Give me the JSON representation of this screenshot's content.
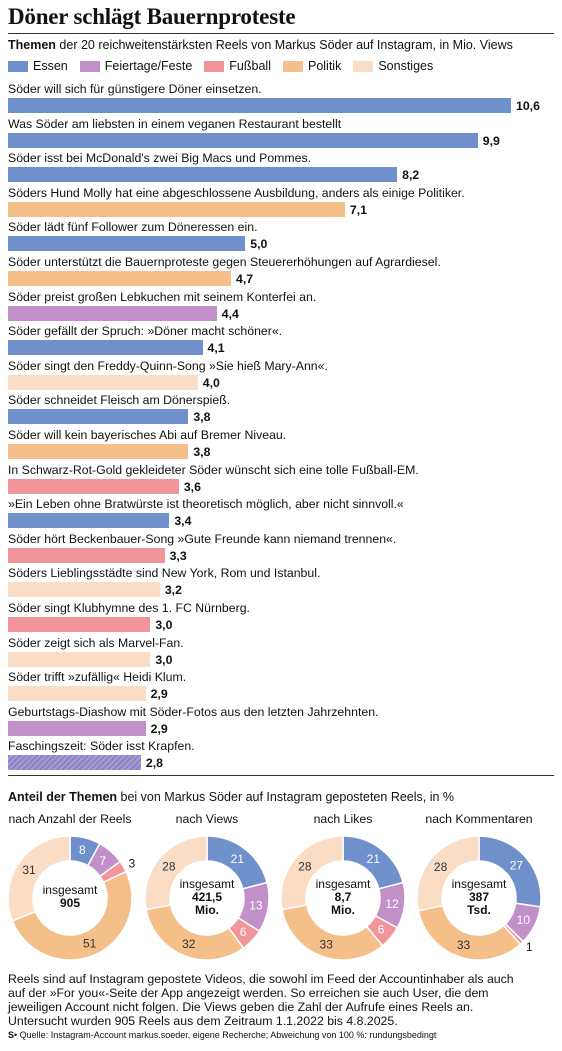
{
  "title": "Döner schlägt Bauernproteste",
  "subtitle_bold": "Themen",
  "subtitle_rest": " der 20 reichweitenstärksten Reels von Markus Söder auf Instagram, in Mio. Views",
  "colors": {
    "Essen": "#7090cc",
    "Feiertage/Feste": "#c290c8",
    "Fußball": "#f2959a",
    "Politik": "#f5bf8a",
    "Sonstiges": "#fbdcc4"
  },
  "legend": [
    "Essen",
    "Feiertage/Feste",
    "Fußball",
    "Politik",
    "Sonstiges"
  ],
  "chart_data": [
    {
      "type": "bar",
      "orientation": "horizontal",
      "unit": "Mio. Views",
      "categories": [
        "Söder will sich für günstigere Döner einsetzen.",
        "Was Söder am liebsten in einem veganen Restaurant bestellt",
        "Söder isst bei McDonald's zwei Big Macs und Pommes.",
        "Söders Hund Molly hat eine abgeschlossene Ausbildung, anders als einige Politiker.",
        "Söder lädt fünf Follower zum Döneressen ein.",
        "Söder unterstützt die Bauernproteste gegen Steuererhöhungen auf Agrardiesel.",
        "Söder preist großen Lebkuchen mit seinem Konterfei an.",
        "Söder gefällt der Spruch: »Döner macht schöner«.",
        "Söder singt den Freddy-Quinn-Song »Sie hieß Mary-Ann«.",
        "Söder schneidet Fleisch am Dönerspieß.",
        "Söder will kein bayerisches Abi auf Bremer Niveau.",
        "In Schwarz-Rot-Gold gekleideter Söder wünscht sich eine tolle Fußball-EM.",
        "»Ein Leben ohne Bratwürste ist theoretisch möglich, aber nicht sinnvoll.«",
        "Söder hört Beckenbauer-Song »Gute Freunde kann niemand trennen«.",
        "Söders Lieblingsstädte sind New York, Rom und Istanbul.",
        "Söder singt Klubhymne des 1. FC Nürnberg.",
        "Söder zeigt sich als Marvel-Fan.",
        "Söder trifft »zufällig« Heidi Klum.",
        "Geburtstags-Diashow mit Söder-Fotos aus den letzten Jahrzehnten.",
        "Faschingszeit: Söder isst Krapfen."
      ],
      "values": [
        10.6,
        9.9,
        8.2,
        7.1,
        5.0,
        4.7,
        4.4,
        4.1,
        4.0,
        3.8,
        3.8,
        3.6,
        3.4,
        3.3,
        3.2,
        3.0,
        3.0,
        2.9,
        2.9,
        2.8
      ],
      "value_labels": [
        "10,6",
        "9,9",
        "8,2",
        "7,1",
        "5,0",
        "4,7",
        "4,4",
        "4,1",
        "4,0",
        "3,8",
        "3,8",
        "3,6",
        "3,4",
        "3,3",
        "3,2",
        "3,0",
        "3,0",
        "2,9",
        "2,9",
        "2,8"
      ],
      "topics": [
        "Essen",
        "Essen",
        "Essen",
        "Politik",
        "Essen",
        "Politik",
        "Feiertage/Feste",
        "Essen",
        "Sonstiges",
        "Essen",
        "Politik",
        "Fußball",
        "Essen",
        "Fußball",
        "Sonstiges",
        "Fußball",
        "Sonstiges",
        "Sonstiges",
        "Feiertage/Feste",
        "Essen+Feiertage/Feste"
      ]
    },
    {
      "type": "pie",
      "donut": true,
      "title_bold": "Anteil der Themen",
      "title_rest": " bei von Markus Söder auf Instagram geposteten Reels, in %",
      "series_order": [
        "Essen",
        "Feiertage/Feste",
        "Fußball",
        "Politik",
        "Sonstiges"
      ],
      "charts": [
        {
          "caption": "nach Anzahl der Reels",
          "center": [
            "insgesamt",
            "905"
          ],
          "values": [
            8,
            7,
            3,
            51,
            31
          ]
        },
        {
          "caption": "nach Views",
          "center": [
            "insgesamt",
            "421,5",
            "Mio."
          ],
          "values": [
            21,
            13,
            6,
            32,
            28
          ]
        },
        {
          "caption": "nach Likes",
          "center": [
            "insgesamt",
            "8,7",
            "Mio."
          ],
          "values": [
            21,
            12,
            6,
            33,
            28
          ]
        },
        {
          "caption": "nach Kommentaren",
          "center": [
            "insgesamt",
            "387",
            "Tsd."
          ],
          "values": [
            27,
            10,
            1,
            33,
            28
          ]
        }
      ]
    }
  ],
  "footnote": "Reels sind auf Instagram gepostete Videos, die sowohl im Feed der Accountinhaber als auch auf der »For you«-Seite der App angezeigt werden. So erreichen sie auch User, die dem jeweiligen Account nicht folgen. Die Views geben die Zahl der Aufrufe eines Reels an. Untersucht wurden 905 Reels aus dem Zeitraum 1.1.2022 bis 4.8.2025.",
  "source_mark": "S",
  "source": "Quelle: Instagram-Account markus.soeder, eigene Recherche; Abweichung von 100 %: rundungsbedingt"
}
